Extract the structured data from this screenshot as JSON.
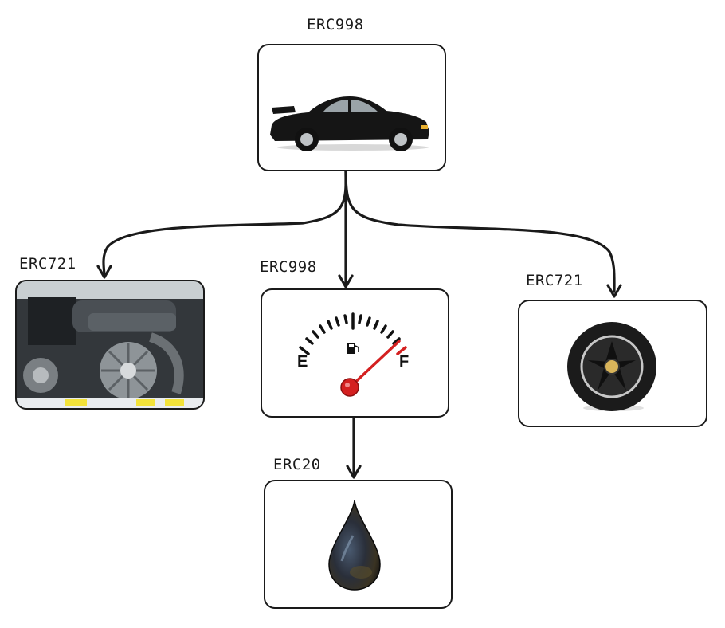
{
  "nodes": {
    "root": {
      "label": "ERC998",
      "picture": "black-sports-car-icon"
    },
    "engine": {
      "label": "ERC721",
      "picture": "car-engine-icon"
    },
    "fuel": {
      "label": "ERC998",
      "picture": "fuel-gauge-icon",
      "gauge_empty": "E",
      "gauge_full": "F",
      "level": 0.92
    },
    "wheel": {
      "label": "ERC721",
      "picture": "wheel-icon"
    },
    "oil": {
      "label": "ERC20",
      "picture": "oil-drop-icon"
    }
  },
  "edges": [
    {
      "from": "root",
      "to": "engine"
    },
    {
      "from": "root",
      "to": "fuel"
    },
    {
      "from": "root",
      "to": "wheel"
    },
    {
      "from": "fuel",
      "to": "oil"
    }
  ],
  "colors": {
    "stroke": "#1a1a1a",
    "needle": "#d42020"
  }
}
